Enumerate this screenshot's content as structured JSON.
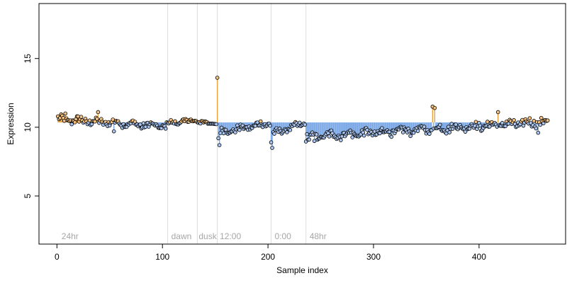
{
  "chart_data": {
    "type": "scatter",
    "xlabel": "Sample index",
    "ylabel": "Expression",
    "xlim": [
      -17,
      482
    ],
    "ylim": [
      1.5,
      19
    ],
    "xticks": [
      0,
      100,
      200,
      300,
      400
    ],
    "yticks": [
      5,
      10,
      15
    ],
    "baseline": 10.35,
    "colors": {
      "above": "#f2c183",
      "below": "#aac6f0",
      "above_stem": "#e8a23c",
      "below_stem": "#7aa7e6",
      "annotation": "#a6a6a6",
      "separator": "#dcdcdc"
    },
    "separators": [
      105,
      133,
      152,
      203,
      236
    ],
    "annotations": [
      {
        "text": "24hr",
        "x": 3
      },
      {
        "text": "dawn",
        "x": 107
      },
      {
        "text": "dusk",
        "x": 133
      },
      {
        "text": "12:00",
        "x": 153
      },
      {
        "text": "0:00",
        "x": 205
      },
      {
        "text": "48hr",
        "x": 238
      }
    ],
    "segments": [
      {
        "x_start": 1,
        "x_end": 104,
        "level_start": 10.6,
        "level_end": 10.05,
        "amp": 0.22
      },
      {
        "x_start": 105,
        "x_end": 132,
        "level_start": 10.3,
        "level_end": 10.5,
        "amp": 0.15
      },
      {
        "x_start": 133,
        "x_end": 151,
        "level_start": 10.4,
        "level_end": 10.25,
        "amp": 0.12
      },
      {
        "x_start": 152,
        "x_end": 202,
        "level_start": 9.6,
        "level_end": 10.3,
        "amp": 0.2
      },
      {
        "x_start": 203,
        "x_end": 235,
        "level_start": 9.5,
        "level_end": 10.3,
        "amp": 0.18
      },
      {
        "x_start": 236,
        "x_end": 465,
        "level_start": 9.3,
        "level_end": 10.4,
        "amp": 0.25
      }
    ],
    "outliers": [
      {
        "x": 152,
        "y": 13.6
      },
      {
        "x": 153,
        "y": 9.2
      },
      {
        "x": 154,
        "y": 8.7
      },
      {
        "x": 203,
        "y": 8.9
      },
      {
        "x": 204,
        "y": 8.5
      },
      {
        "x": 39,
        "y": 11.1
      },
      {
        "x": 8,
        "y": 11.0
      },
      {
        "x": 356,
        "y": 11.5
      },
      {
        "x": 358,
        "y": 11.4
      },
      {
        "x": 418,
        "y": 11.1
      },
      {
        "x": 54,
        "y": 9.7
      },
      {
        "x": 238,
        "y": 9.1
      },
      {
        "x": 244,
        "y": 9.0
      },
      {
        "x": 456,
        "y": 9.6
      }
    ]
  }
}
